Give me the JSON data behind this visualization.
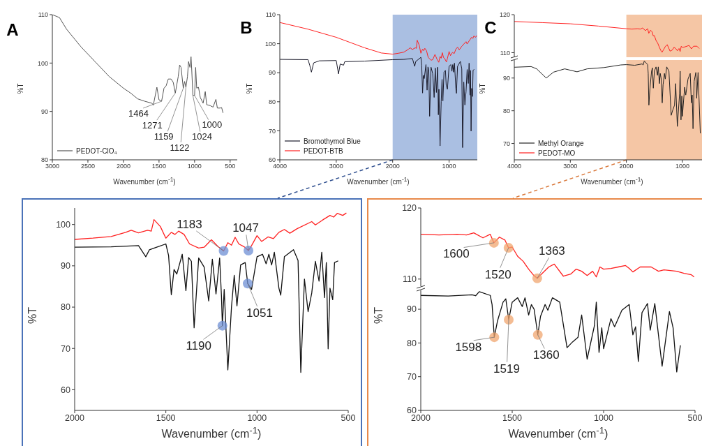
{
  "chart_data": [
    {
      "type": "line",
      "title": "A",
      "xlabel": "Wavenumber (cm$^{-1}$)",
      "ylabel": "%T",
      "xlim": [
        3000,
        400
      ],
      "xticks": [
        3000,
        2500,
        2000,
        1500,
        1000,
        500
      ],
      "ylim": [
        80,
        110
      ],
      "yticks": [
        80,
        90,
        100,
        110
      ],
      "legend": "bottom left",
      "series": [
        {
          "name": "PEDOT-ClO₄",
          "color": "#555555",
          "x": [
            3000,
            2900,
            2800,
            2600,
            2400,
            2200,
            2000,
            1900,
            1800,
            1700,
            1600,
            1580,
            1530,
            1500,
            1464,
            1430,
            1400,
            1370,
            1330,
            1300,
            1271,
            1230,
            1210,
            1190,
            1159,
            1140,
            1122,
            1100,
            1085,
            1065,
            1050,
            1040,
            1024,
            1000,
            985,
            970,
            945,
            920,
            880,
            850,
            830,
            780,
            740,
            700,
            680,
            640,
            620,
            600
          ],
          "values": [
            110,
            109.4,
            107,
            103.4,
            100.3,
            97.2,
            94.8,
            93.8,
            92.6,
            92.1,
            91.7,
            91.3,
            95.0,
            92.4,
            92.1,
            94.8,
            95.3,
            96.7,
            96.7,
            96.0,
            93.8,
            97.2,
            99.6,
            99.1,
            94.8,
            96.2,
            95.0,
            97.2,
            100.3,
            99.1,
            101.3,
            98.6,
            93.3,
            93.3,
            99.1,
            94.8,
            95.0,
            92.9,
            91.7,
            94.1,
            91.4,
            91.2,
            90.9,
            92.5,
            90.7,
            90.7,
            90.8,
            89.7
          ]
        }
      ],
      "annotations": [
        {
          "text": "1464",
          "x": 1464,
          "y": 92.1
        },
        {
          "text": "1271",
          "x": 1271,
          "y": 93.8
        },
        {
          "text": "1159",
          "x": 1159,
          "y": 94.8
        },
        {
          "text": "1122",
          "x": 1122,
          "y": 95.0
        },
        {
          "text": "1024",
          "x": 1024,
          "y": 93.3
        },
        {
          "text": "1000",
          "x": 1000,
          "y": 93.3
        }
      ]
    },
    {
      "type": "line",
      "title": "B",
      "xlabel": "Wavenumber (cm$^{-1}$)",
      "ylabel": "%T",
      "xlim": [
        4000,
        500
      ],
      "xticks": [
        4000,
        3000,
        2000,
        1000
      ],
      "ylim": [
        60,
        110
      ],
      "yticks": [
        60,
        70,
        80,
        90,
        100,
        110
      ],
      "legend": "bottom left",
      "bands": [
        {
          "axis": "x",
          "from": 2000,
          "to": 500,
          "color": "#aabfe2"
        }
      ],
      "series": [
        {
          "name": "Bromothymol Blue",
          "color": "#1a1a2a",
          "x": [
            4000,
            3500,
            3470,
            3440,
            3400,
            3300,
            3000,
            2960,
            2930,
            2870,
            2850,
            2500,
            2000,
            1800,
            1650,
            1610,
            1590,
            1550,
            1500,
            1485,
            1470,
            1455,
            1440,
            1410,
            1390,
            1375,
            1360,
            1345,
            1320,
            1290,
            1265,
            1245,
            1225,
            1205,
            1195,
            1190,
            1180,
            1160,
            1140,
            1125,
            1110,
            1090,
            1065,
            1051,
            1030,
            1000,
            970,
            950,
            935,
            920,
            905,
            880,
            870,
            850,
            800,
            775,
            760,
            740,
            720,
            700,
            680,
            660,
            645,
            630,
            620,
            610,
            600,
            585,
            575,
            555
          ],
          "values": [
            94.6,
            94.5,
            92.6,
            90.2,
            93.4,
            94.1,
            94.2,
            89.6,
            93.0,
            92.6,
            93.8,
            94.0,
            94.5,
            94.6,
            94.9,
            92.2,
            93.9,
            94.5,
            95.3,
            92.5,
            83.0,
            89.1,
            88.0,
            92.8,
            84.0,
            92.0,
            91.1,
            75.0,
            91.9,
            89.7,
            81.5,
            91.6,
            83.2,
            91.9,
            82.6,
            75.5,
            84.3,
            64.8,
            80.1,
            87.7,
            80.3,
            90.2,
            90.8,
            85.7,
            84.3,
            92.2,
            92.8,
            90.5,
            92.8,
            90.2,
            93.3,
            84.6,
            82.9,
            92.2,
            93.9,
            91.3,
            64.2,
            86.8,
            78.9,
            83.4,
            91.1,
            86.3,
            93.3,
            82.3,
            90.8,
            69.9,
            84.6,
            81.8,
            90.8,
            91.2
          ]
        },
        {
          "name": "PEDOT-BTB",
          "color": "#ff2020",
          "x": [
            4000,
            3500,
            3000,
            2500,
            2200,
            2000,
            1900,
            1800,
            1720,
            1690,
            1650,
            1600,
            1580,
            1565,
            1530,
            1500,
            1470,
            1450,
            1430,
            1400,
            1370,
            1320,
            1290,
            1250,
            1215,
            1183,
            1160,
            1140,
            1120,
            1100,
            1070,
            1047,
            1030,
            1000,
            975,
            940,
            910,
            880,
            850,
            820,
            780,
            700,
            680,
            640,
            600,
            580,
            560,
            530,
            510
          ],
          "values": [
            107.3,
            105,
            102.2,
            98.6,
            96.8,
            96.4,
            96.7,
            97.1,
            98.1,
            98.6,
            98.0,
            98.6,
            98.4,
            101.2,
            99.5,
            96.7,
            98.1,
            97.6,
            98.4,
            97.6,
            95.3,
            94.3,
            94.5,
            96.3,
            94.7,
            93.6,
            95.6,
            95.0,
            96.9,
            95.3,
            94.6,
            93.7,
            94.9,
            97.3,
            95.9,
            97.0,
            96.6,
            98.1,
            98.8,
            97.9,
            99.0,
            100.7,
            99.9,
            101.1,
            102.2,
            101.8,
            102.7,
            102.2,
            102.8
          ]
        }
      ]
    },
    {
      "type": "line",
      "title": "C",
      "xlim": [
        4000,
        650
      ],
      "ylim": [
        108.8,
        120
      ],
      "yticks": [
        110,
        120
      ],
      "tick_labels": "y",
      "legend": "bottom left",
      "bands": [
        {
          "axis": "x",
          "from": 2000,
          "to": 650,
          "color": "#f5c6a5"
        }
      ],
      "series": [
        {
          "name": "PEDOT-MO",
          "color": "#ff2020",
          "x": [
            4000,
            3500,
            3000,
            2500,
            2000,
            1900,
            1800,
            1750,
            1710,
            1660,
            1620,
            1600,
            1570,
            1540,
            1520,
            1500,
            1470,
            1440,
            1410,
            1385,
            1363,
            1340,
            1300,
            1270,
            1220,
            1180,
            1150,
            1120,
            1090,
            1060,
            1040,
            1020,
            1000,
            960,
            920,
            880,
            860,
            840,
            800,
            740,
            700
          ],
          "values": [
            118.2,
            117.9,
            117.6,
            117.0,
            116.3,
            116.2,
            116.3,
            116.2,
            116.5,
            115.8,
            116.3,
            115.1,
            115.9,
            115.5,
            114.4,
            114.5,
            113.2,
            112.5,
            111.4,
            110.6,
            110.1,
            110.7,
            111.7,
            112.1,
            110.4,
            110.7,
            111.4,
            111.1,
            110.5,
            111.1,
            110.3,
            111.7,
            111.4,
            111.5,
            111.7,
            111.9,
            111.5,
            111.0,
            111.7,
            111.7,
            111.1
          ]
        }
      ]
    },
    {
      "type": "line",
      "xlabel": "Wavenumber (cm$^{-1}$)",
      "ylabel": "%T",
      "xlim": [
        4000,
        650
      ],
      "xticks": [
        4000,
        3000,
        2000,
        1000
      ],
      "ylim": [
        65,
        95.5
      ],
      "yticks": [
        70,
        80,
        90
      ],
      "legend": "bottom left",
      "bands": [
        {
          "axis": "x",
          "from": 2000,
          "to": 650,
          "color": "#f5c6a5"
        }
      ],
      "series": [
        {
          "name": "Methyl Orange",
          "color": "#222222",
          "x": [
            4000,
            3700,
            3600,
            3430,
            3300,
            3100,
            2880,
            2700,
            2400,
            2100,
            2000,
            1850,
            1720,
            1700,
            1680,
            1620,
            1610,
            1598,
            1580,
            1550,
            1535,
            1519,
            1500,
            1470,
            1445,
            1430,
            1410,
            1395,
            1380,
            1360,
            1345,
            1320,
            1305,
            1280,
            1240,
            1200,
            1170,
            1140,
            1120,
            1090,
            1050,
            1040,
            1025,
            1010,
            1000,
            960,
            940,
            900,
            860,
            840,
            825,
            810,
            790,
            760,
            745,
            720,
            680
          ],
          "values": [
            93.3,
            93.5,
            92.8,
            90.0,
            91.8,
            92.8,
            91.9,
            92.8,
            93.2,
            94.0,
            94.1,
            93.9,
            94.3,
            94.0,
            95.2,
            94.1,
            91.4,
            81.7,
            86.6,
            92.1,
            93.1,
            86.9,
            92.1,
            93.4,
            90.8,
            93.4,
            88.3,
            91.4,
            90.0,
            82.4,
            87.9,
            91.4,
            89.7,
            93.4,
            92.1,
            78.6,
            80.3,
            81.7,
            88.3,
            75.2,
            85.2,
            92.1,
            77.2,
            84.5,
            78.3,
            87.2,
            84.8,
            89.7,
            91.4,
            82.4,
            84.8,
            74.5,
            89.0,
            91.7,
            83.8,
            91.7,
            73.1
          ]
        }
      ]
    },
    {
      "type": "line",
      "xlabel": "Wavenumber (cm$^{-1}$)",
      "ylabel": "%T",
      "xlim": [
        2000,
        500
      ],
      "xticks": [
        2000,
        1500,
        1000,
        500
      ],
      "ylim": [
        55,
        104
      ],
      "yticks": [
        60,
        70,
        80,
        90,
        100
      ],
      "series": [
        {
          "color": "#ff2020",
          "x": [
            2000,
            1900,
            1800,
            1720,
            1690,
            1650,
            1600,
            1580,
            1565,
            1530,
            1500,
            1470,
            1450,
            1430,
            1400,
            1370,
            1320,
            1290,
            1250,
            1215,
            1183,
            1160,
            1140,
            1120,
            1100,
            1070,
            1047,
            1030,
            1000,
            975,
            940,
            910,
            880,
            850,
            820,
            780,
            700,
            680,
            640,
            600,
            580,
            560,
            530,
            510
          ],
          "values": [
            96.4,
            96.7,
            97.1,
            98.1,
            98.6,
            98.0,
            98.6,
            98.4,
            101.2,
            99.5,
            96.7,
            98.1,
            97.6,
            98.4,
            97.6,
            95.3,
            94.3,
            94.5,
            96.3,
            94.7,
            93.6,
            95.6,
            95.0,
            96.9,
            95.3,
            94.6,
            93.7,
            94.9,
            97.3,
            95.9,
            97.0,
            96.6,
            98.1,
            98.8,
            97.9,
            99.0,
            100.7,
            99.9,
            101.1,
            102.2,
            101.8,
            102.7,
            102.2,
            102.8
          ]
        },
        {
          "color": "#111111",
          "x": [
            2000,
            1800,
            1650,
            1610,
            1590,
            1550,
            1500,
            1485,
            1470,
            1455,
            1440,
            1410,
            1390,
            1375,
            1360,
            1345,
            1320,
            1290,
            1265,
            1245,
            1225,
            1205,
            1195,
            1190,
            1180,
            1160,
            1140,
            1125,
            1110,
            1090,
            1065,
            1051,
            1030,
            1000,
            970,
            950,
            935,
            920,
            905,
            880,
            870,
            850,
            800,
            775,
            760,
            740,
            720,
            700,
            680,
            660,
            645,
            630,
            620,
            610,
            600,
            585,
            575,
            555
          ],
          "values": [
            94.5,
            94.6,
            94.9,
            92.2,
            93.9,
            94.5,
            95.3,
            92.5,
            83.0,
            89.1,
            88.0,
            92.8,
            84.0,
            92.0,
            91.1,
            75.0,
            91.9,
            89.7,
            81.5,
            91.6,
            83.2,
            91.9,
            82.6,
            75.5,
            84.3,
            64.8,
            80.1,
            87.7,
            80.3,
            90.2,
            90.8,
            85.7,
            84.3,
            92.2,
            92.8,
            90.5,
            92.8,
            90.2,
            93.3,
            84.6,
            82.9,
            92.2,
            93.9,
            91.3,
            64.2,
            86.8,
            78.9,
            83.4,
            91.1,
            86.3,
            93.3,
            82.3,
            90.8,
            69.9,
            84.6,
            81.8,
            90.8,
            91.2
          ]
        }
      ],
      "annotations": [
        {
          "text": "1183",
          "x": 1183,
          "y": 93.6
        },
        {
          "text": "1047",
          "x": 1047,
          "y": 93.7
        },
        {
          "text": "1190",
          "x": 1190,
          "y": 75.5
        },
        {
          "text": "1051",
          "x": 1051,
          "y": 85.7
        }
      ]
    },
    {
      "type": "line",
      "xlim": [
        2000,
        500
      ],
      "ylim": [
        109,
        120
      ],
      "yticks": [
        110,
        120
      ],
      "tick_labels": "y",
      "series": [
        {
          "color": "#ff2020",
          "x": [
            2000,
            1900,
            1800,
            1750,
            1710,
            1660,
            1620,
            1600,
            1570,
            1540,
            1520,
            1500,
            1470,
            1440,
            1410,
            1385,
            1363,
            1340,
            1300,
            1270,
            1220,
            1180,
            1150,
            1120,
            1090,
            1060,
            1040,
            1020,
            1000,
            960,
            920,
            880,
            860,
            840,
            800,
            740,
            700,
            670,
            600,
            560,
            520,
            505
          ],
          "values": [
            116.3,
            116.2,
            116.3,
            116.2,
            116.5,
            115.8,
            116.3,
            115.1,
            115.9,
            115.5,
            114.4,
            114.5,
            113.2,
            112.5,
            111.4,
            110.6,
            110.1,
            110.7,
            111.7,
            112.1,
            110.4,
            110.7,
            111.4,
            111.1,
            110.5,
            111.1,
            110.3,
            111.7,
            111.4,
            111.5,
            111.7,
            111.9,
            111.5,
            111.0,
            111.7,
            111.7,
            111.1,
            111.3,
            111.1,
            110.8,
            110.6,
            110.3
          ]
        }
      ],
      "annotations": [
        {
          "text": "1600",
          "x": 1600,
          "y": 115.1
        },
        {
          "text": "1520",
          "x": 1520,
          "y": 114.4
        },
        {
          "text": "1363",
          "x": 1363,
          "y": 110.1
        }
      ]
    },
    {
      "type": "line",
      "xlabel": "Wavenumber (cm$^{-1}$)",
      "ylabel": "%T",
      "xlim": [
        2000,
        500
      ],
      "xticks": [
        2000,
        1500,
        1000,
        500
      ],
      "ylim": [
        60,
        95.6
      ],
      "yticks": [
        60,
        70,
        80,
        90
      ],
      "series": [
        {
          "color": "#111111",
          "x": [
            2000,
            1850,
            1720,
            1700,
            1680,
            1620,
            1610,
            1598,
            1580,
            1550,
            1535,
            1519,
            1500,
            1470,
            1445,
            1430,
            1410,
            1395,
            1380,
            1360,
            1345,
            1320,
            1305,
            1280,
            1240,
            1200,
            1170,
            1140,
            1120,
            1090,
            1050,
            1040,
            1025,
            1010,
            1000,
            960,
            940,
            900,
            860,
            840,
            825,
            810,
            790,
            760,
            745,
            720,
            680,
            640,
            620,
            600,
            580
          ],
          "values": [
            94.1,
            93.9,
            94.3,
            94.0,
            95.2,
            94.1,
            91.4,
            81.7,
            86.6,
            92.1,
            93.1,
            86.9,
            92.1,
            93.4,
            90.8,
            93.4,
            88.3,
            91.4,
            90.0,
            82.4,
            87.9,
            91.4,
            89.7,
            93.4,
            92.1,
            78.6,
            80.3,
            81.7,
            88.3,
            75.2,
            85.2,
            92.1,
            77.2,
            84.5,
            78.3,
            87.2,
            84.8,
            89.7,
            91.4,
            82.4,
            84.8,
            74.5,
            89.0,
            91.7,
            83.8,
            91.7,
            73.1,
            89.3,
            84.5,
            71.4,
            79.3
          ]
        }
      ],
      "annotations": [
        {
          "text": "1598",
          "x": 1598,
          "y": 81.7
        },
        {
          "text": "1519",
          "x": 1519,
          "y": 86.9
        },
        {
          "text": "1360",
          "x": 1360,
          "y": 82.4
        }
      ]
    }
  ]
}
